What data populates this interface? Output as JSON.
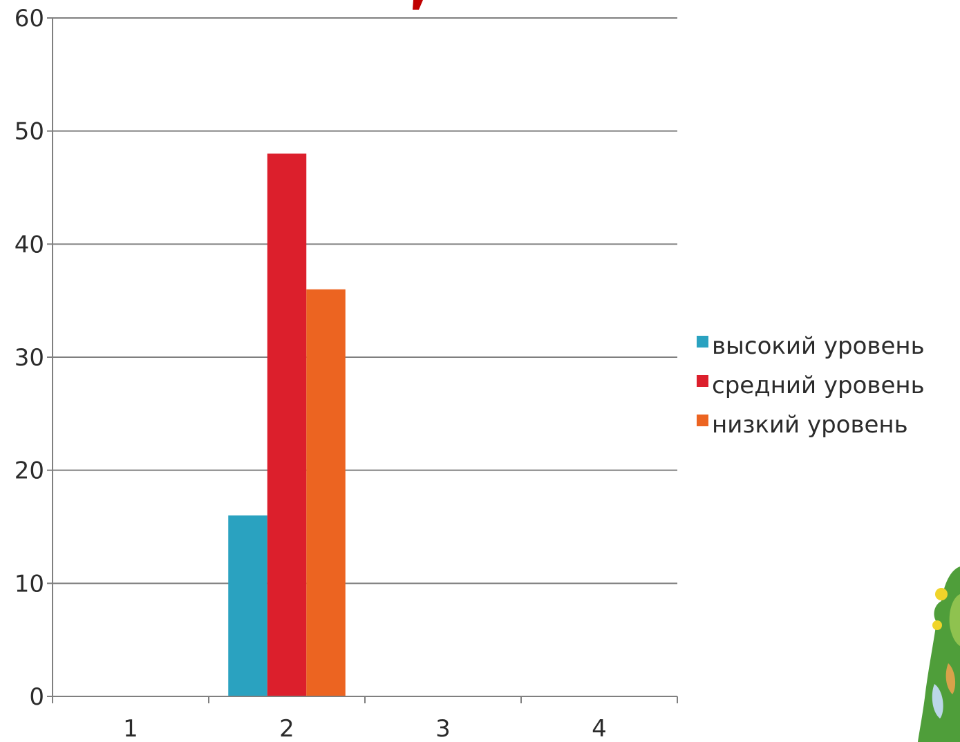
{
  "chart_data": {
    "type": "bar",
    "title": "",
    "xlabel": "",
    "ylabel": "",
    "categories": [
      "1",
      "2",
      "3",
      "4"
    ],
    "ylim": [
      0,
      60
    ],
    "yticks": [
      0,
      10,
      20,
      30,
      40,
      50,
      60
    ],
    "grid": true,
    "legend_position": "right",
    "series": [
      {
        "name": "высокий уровень",
        "color": "#2aa2c0",
        "values": [
          0,
          16,
          0,
          0
        ]
      },
      {
        "name": "средний уровень",
        "color": "#dc1f2c",
        "values": [
          0,
          48,
          0,
          0
        ]
      },
      {
        "name": "низкий уровень",
        "color": "#ec6421",
        "values": [
          0,
          36,
          0,
          0
        ]
      }
    ]
  },
  "colors": {
    "title_fragment": "#c00000",
    "gridline": "#7f7f7f",
    "axis": "#7f7f7f"
  },
  "decorations": {
    "top_fragment_icon": "red-italic-title-fragment",
    "corner_icon": "cartoon-figure-icon"
  }
}
